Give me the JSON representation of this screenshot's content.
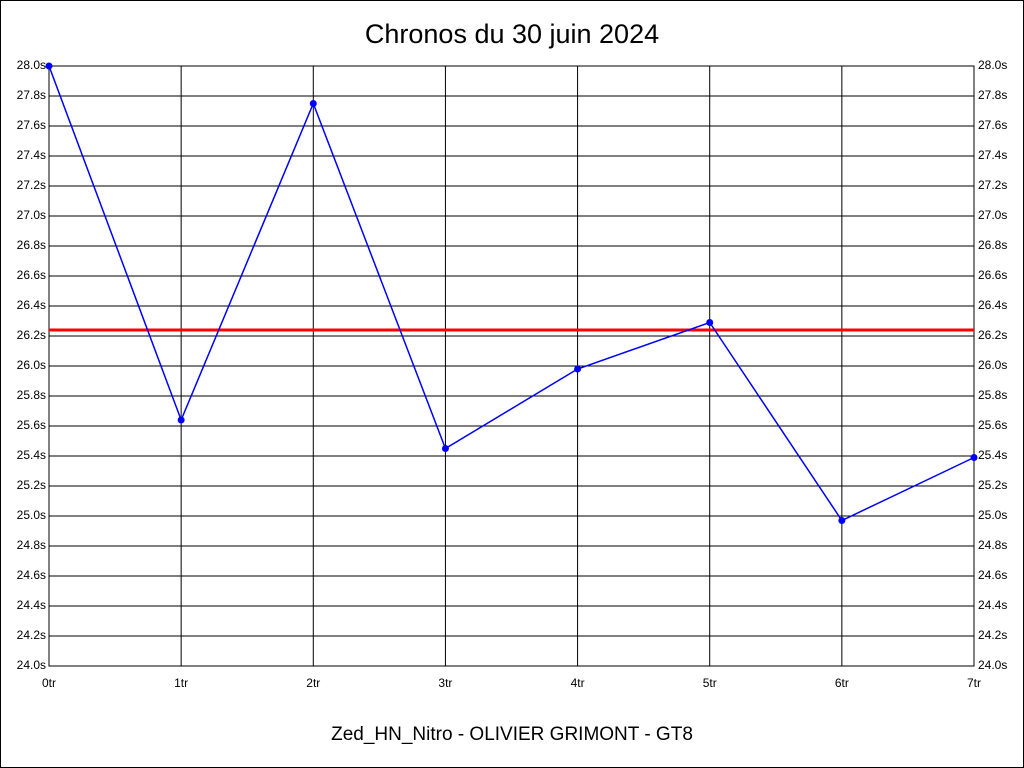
{
  "chart_data": {
    "type": "line",
    "title": "Chronos du 30 juin 2024",
    "x_label": "Zed_HN_Nitro - OLIVIER GRIMONT - GT8",
    "categories": [
      "0tr",
      "1tr",
      "2tr",
      "3tr",
      "4tr",
      "5tr",
      "6tr",
      "7tr"
    ],
    "values": [
      28.0,
      25.64,
      27.75,
      25.45,
      25.98,
      26.29,
      24.97,
      25.39
    ],
    "color": "#0000ff",
    "reference_line": {
      "value": 26.24,
      "color": "#ff0000"
    },
    "ylim": [
      24.0,
      28.0
    ],
    "yticks": [
      {
        "value": 24.0,
        "label": "24.0s"
      },
      {
        "value": 24.2,
        "label": "24.2s"
      },
      {
        "value": 24.4,
        "label": "24.4s"
      },
      {
        "value": 24.6,
        "label": "24.6s"
      },
      {
        "value": 24.8,
        "label": "24.8s"
      },
      {
        "value": 25.0,
        "label": "25.0s"
      },
      {
        "value": 25.2,
        "label": "25.2s"
      },
      {
        "value": 25.4,
        "label": "25.4s"
      },
      {
        "value": 25.6,
        "label": "25.6s"
      },
      {
        "value": 25.8,
        "label": "25.8s"
      },
      {
        "value": 26.0,
        "label": "26.0s"
      },
      {
        "value": 26.2,
        "label": "26.2s"
      },
      {
        "value": 26.4,
        "label": "26.4s"
      },
      {
        "value": 26.6,
        "label": "26.6s"
      },
      {
        "value": 26.8,
        "label": "26.8s"
      },
      {
        "value": 27.0,
        "label": "27.0s"
      },
      {
        "value": 27.2,
        "label": "27.2s"
      },
      {
        "value": 27.4,
        "label": "27.4s"
      },
      {
        "value": 27.6,
        "label": "27.6s"
      },
      {
        "value": 27.8,
        "label": "27.8s"
      },
      {
        "value": 28.0,
        "label": "28.0s"
      }
    ],
    "grid": true
  }
}
